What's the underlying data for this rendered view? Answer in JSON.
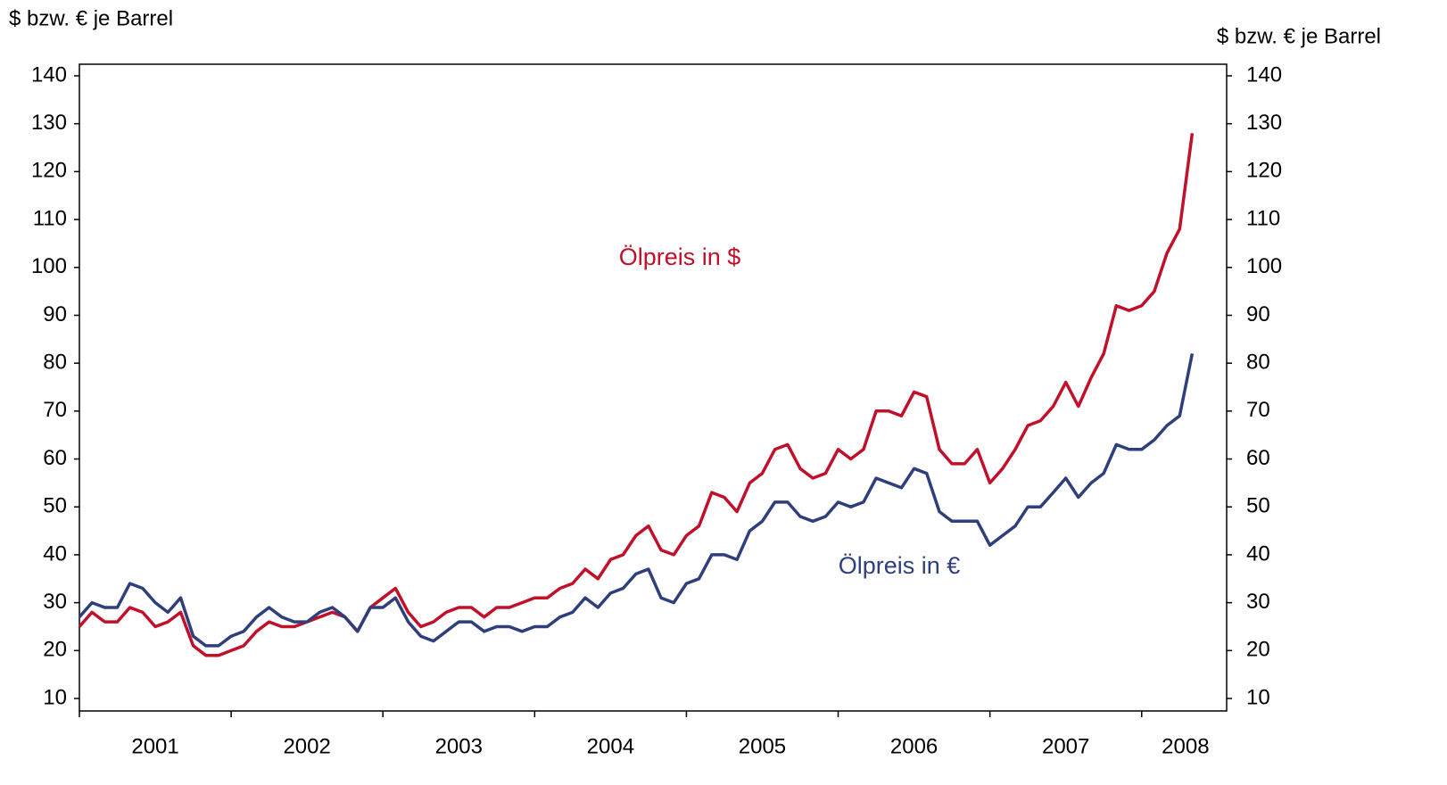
{
  "chart_data": {
    "type": "line",
    "ylabel": "$ bzw. € je Barrel",
    "y2label": "$ bzw. € je Barrel",
    "annotations": [
      "Ölpreis in $",
      "Ölpreis in €"
    ],
    "x": [
      2001.0,
      2001.083,
      2001.167,
      2001.25,
      2001.333,
      2001.417,
      2001.5,
      2001.583,
      2001.667,
      2001.75,
      2001.833,
      2001.917,
      2002.0,
      2002.083,
      2002.167,
      2002.25,
      2002.333,
      2002.417,
      2002.5,
      2002.583,
      2002.667,
      2002.75,
      2002.833,
      2002.917,
      2003.0,
      2003.083,
      2003.167,
      2003.25,
      2003.333,
      2003.417,
      2003.5,
      2003.583,
      2003.667,
      2003.75,
      2003.833,
      2003.917,
      2004.0,
      2004.083,
      2004.167,
      2004.25,
      2004.333,
      2004.417,
      2004.5,
      2004.583,
      2004.667,
      2004.75,
      2004.833,
      2004.917,
      2005.0,
      2005.083,
      2005.167,
      2005.25,
      2005.333,
      2005.417,
      2005.5,
      2005.583,
      2005.667,
      2005.75,
      2005.833,
      2005.917,
      2006.0,
      2006.083,
      2006.167,
      2006.25,
      2006.333,
      2006.417,
      2006.5,
      2006.583,
      2006.667,
      2006.75,
      2006.833,
      2006.917,
      2007.0,
      2007.083,
      2007.167,
      2007.25,
      2007.333,
      2007.417,
      2007.5,
      2007.583,
      2007.667,
      2007.75,
      2007.833,
      2007.917,
      2008.0,
      2008.083,
      2008.167,
      2008.25,
      2008.333
    ],
    "series": [
      {
        "name": "Ölpreis in $",
        "color": "#c0102a",
        "values": [
          25,
          28,
          26,
          26,
          29,
          28,
          25,
          26,
          28,
          21,
          19,
          19,
          20,
          21,
          24,
          26,
          25,
          25,
          26,
          27,
          28,
          27,
          24,
          29,
          31,
          33,
          28,
          25,
          26,
          28,
          29,
          29,
          27,
          29,
          29,
          30,
          31,
          31,
          33,
          34,
          37,
          35,
          39,
          40,
          44,
          46,
          41,
          40,
          44,
          46,
          53,
          52,
          49,
          55,
          57,
          62,
          63,
          58,
          56,
          57,
          62,
          60,
          62,
          70,
          70,
          69,
          74,
          73,
          62,
          59,
          59,
          62,
          55,
          58,
          62,
          67,
          68,
          71,
          76,
          71,
          77,
          82,
          92,
          91,
          92,
          95,
          103,
          108,
          128
        ]
      },
      {
        "name": "Ölpreis in €",
        "color": "#2e3f7c",
        "values": [
          27,
          30,
          29,
          29,
          34,
          33,
          30,
          28,
          31,
          23,
          21,
          21,
          23,
          24,
          27,
          29,
          27,
          26,
          26,
          28,
          29,
          27,
          24,
          29,
          29,
          31,
          26,
          23,
          22,
          24,
          26,
          26,
          24,
          25,
          25,
          24,
          25,
          25,
          27,
          28,
          31,
          29,
          32,
          33,
          36,
          37,
          31,
          30,
          34,
          35,
          40,
          40,
          39,
          45,
          47,
          51,
          51,
          48,
          47,
          48,
          51,
          50,
          51,
          56,
          55,
          54,
          58,
          57,
          49,
          47,
          47,
          47,
          42,
          44,
          46,
          50,
          50,
          53,
          56,
          52,
          55,
          57,
          63,
          62,
          62,
          64,
          67,
          69,
          82
        ]
      }
    ],
    "xlim": [
      2001,
      2008.56
    ],
    "xticks": [
      2001,
      2002,
      2003,
      2004,
      2005,
      2006,
      2007,
      2008
    ],
    "ylim": [
      10,
      140
    ],
    "yticks": [
      10,
      20,
      30,
      40,
      50,
      60,
      70,
      80,
      90,
      100,
      110,
      120,
      130,
      140
    ],
    "y2lim": [
      10,
      140
    ],
    "y2ticks": [
      10,
      20,
      30,
      40,
      50,
      60,
      70,
      80,
      90,
      100,
      110,
      120,
      130,
      140
    ]
  }
}
